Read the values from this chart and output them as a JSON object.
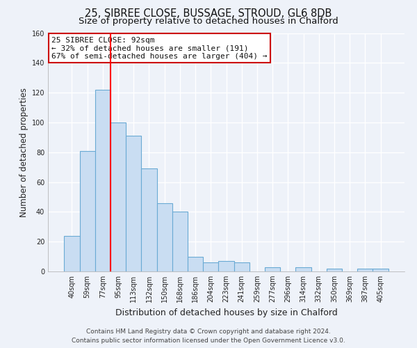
{
  "title": "25, SIBREE CLOSE, BUSSAGE, STROUD, GL6 8DB",
  "subtitle": "Size of property relative to detached houses in Chalford",
  "xlabel": "Distribution of detached houses by size in Chalford",
  "ylabel": "Number of detached properties",
  "bar_labels": [
    "40sqm",
    "59sqm",
    "77sqm",
    "95sqm",
    "113sqm",
    "132sqm",
    "150sqm",
    "168sqm",
    "186sqm",
    "204sqm",
    "223sqm",
    "241sqm",
    "259sqm",
    "277sqm",
    "296sqm",
    "314sqm",
    "332sqm",
    "350sqm",
    "369sqm",
    "387sqm",
    "405sqm"
  ],
  "bar_values": [
    24,
    81,
    122,
    100,
    91,
    69,
    46,
    40,
    10,
    6,
    7,
    6,
    0,
    3,
    0,
    3,
    0,
    2,
    0,
    2,
    2
  ],
  "bar_color": "#c9ddf2",
  "bar_edge_color": "#6aaad4",
  "vline_x": 2.5,
  "vline_color": "red",
  "ylim": [
    0,
    160
  ],
  "yticks": [
    0,
    20,
    40,
    60,
    80,
    100,
    120,
    140,
    160
  ],
  "annotation_box_text": "25 SIBREE CLOSE: 92sqm\n← 32% of detached houses are smaller (191)\n67% of semi-detached houses are larger (404) →",
  "footer_line1": "Contains HM Land Registry data © Crown copyright and database right 2024.",
  "footer_line2": "Contains public sector information licensed under the Open Government Licence v3.0.",
  "background_color": "#eef2f9",
  "grid_color": "#ffffff",
  "title_fontsize": 10.5,
  "subtitle_fontsize": 9.5,
  "axis_label_fontsize": 8.5,
  "tick_fontsize": 7,
  "annotation_fontsize": 8,
  "footer_fontsize": 6.5
}
